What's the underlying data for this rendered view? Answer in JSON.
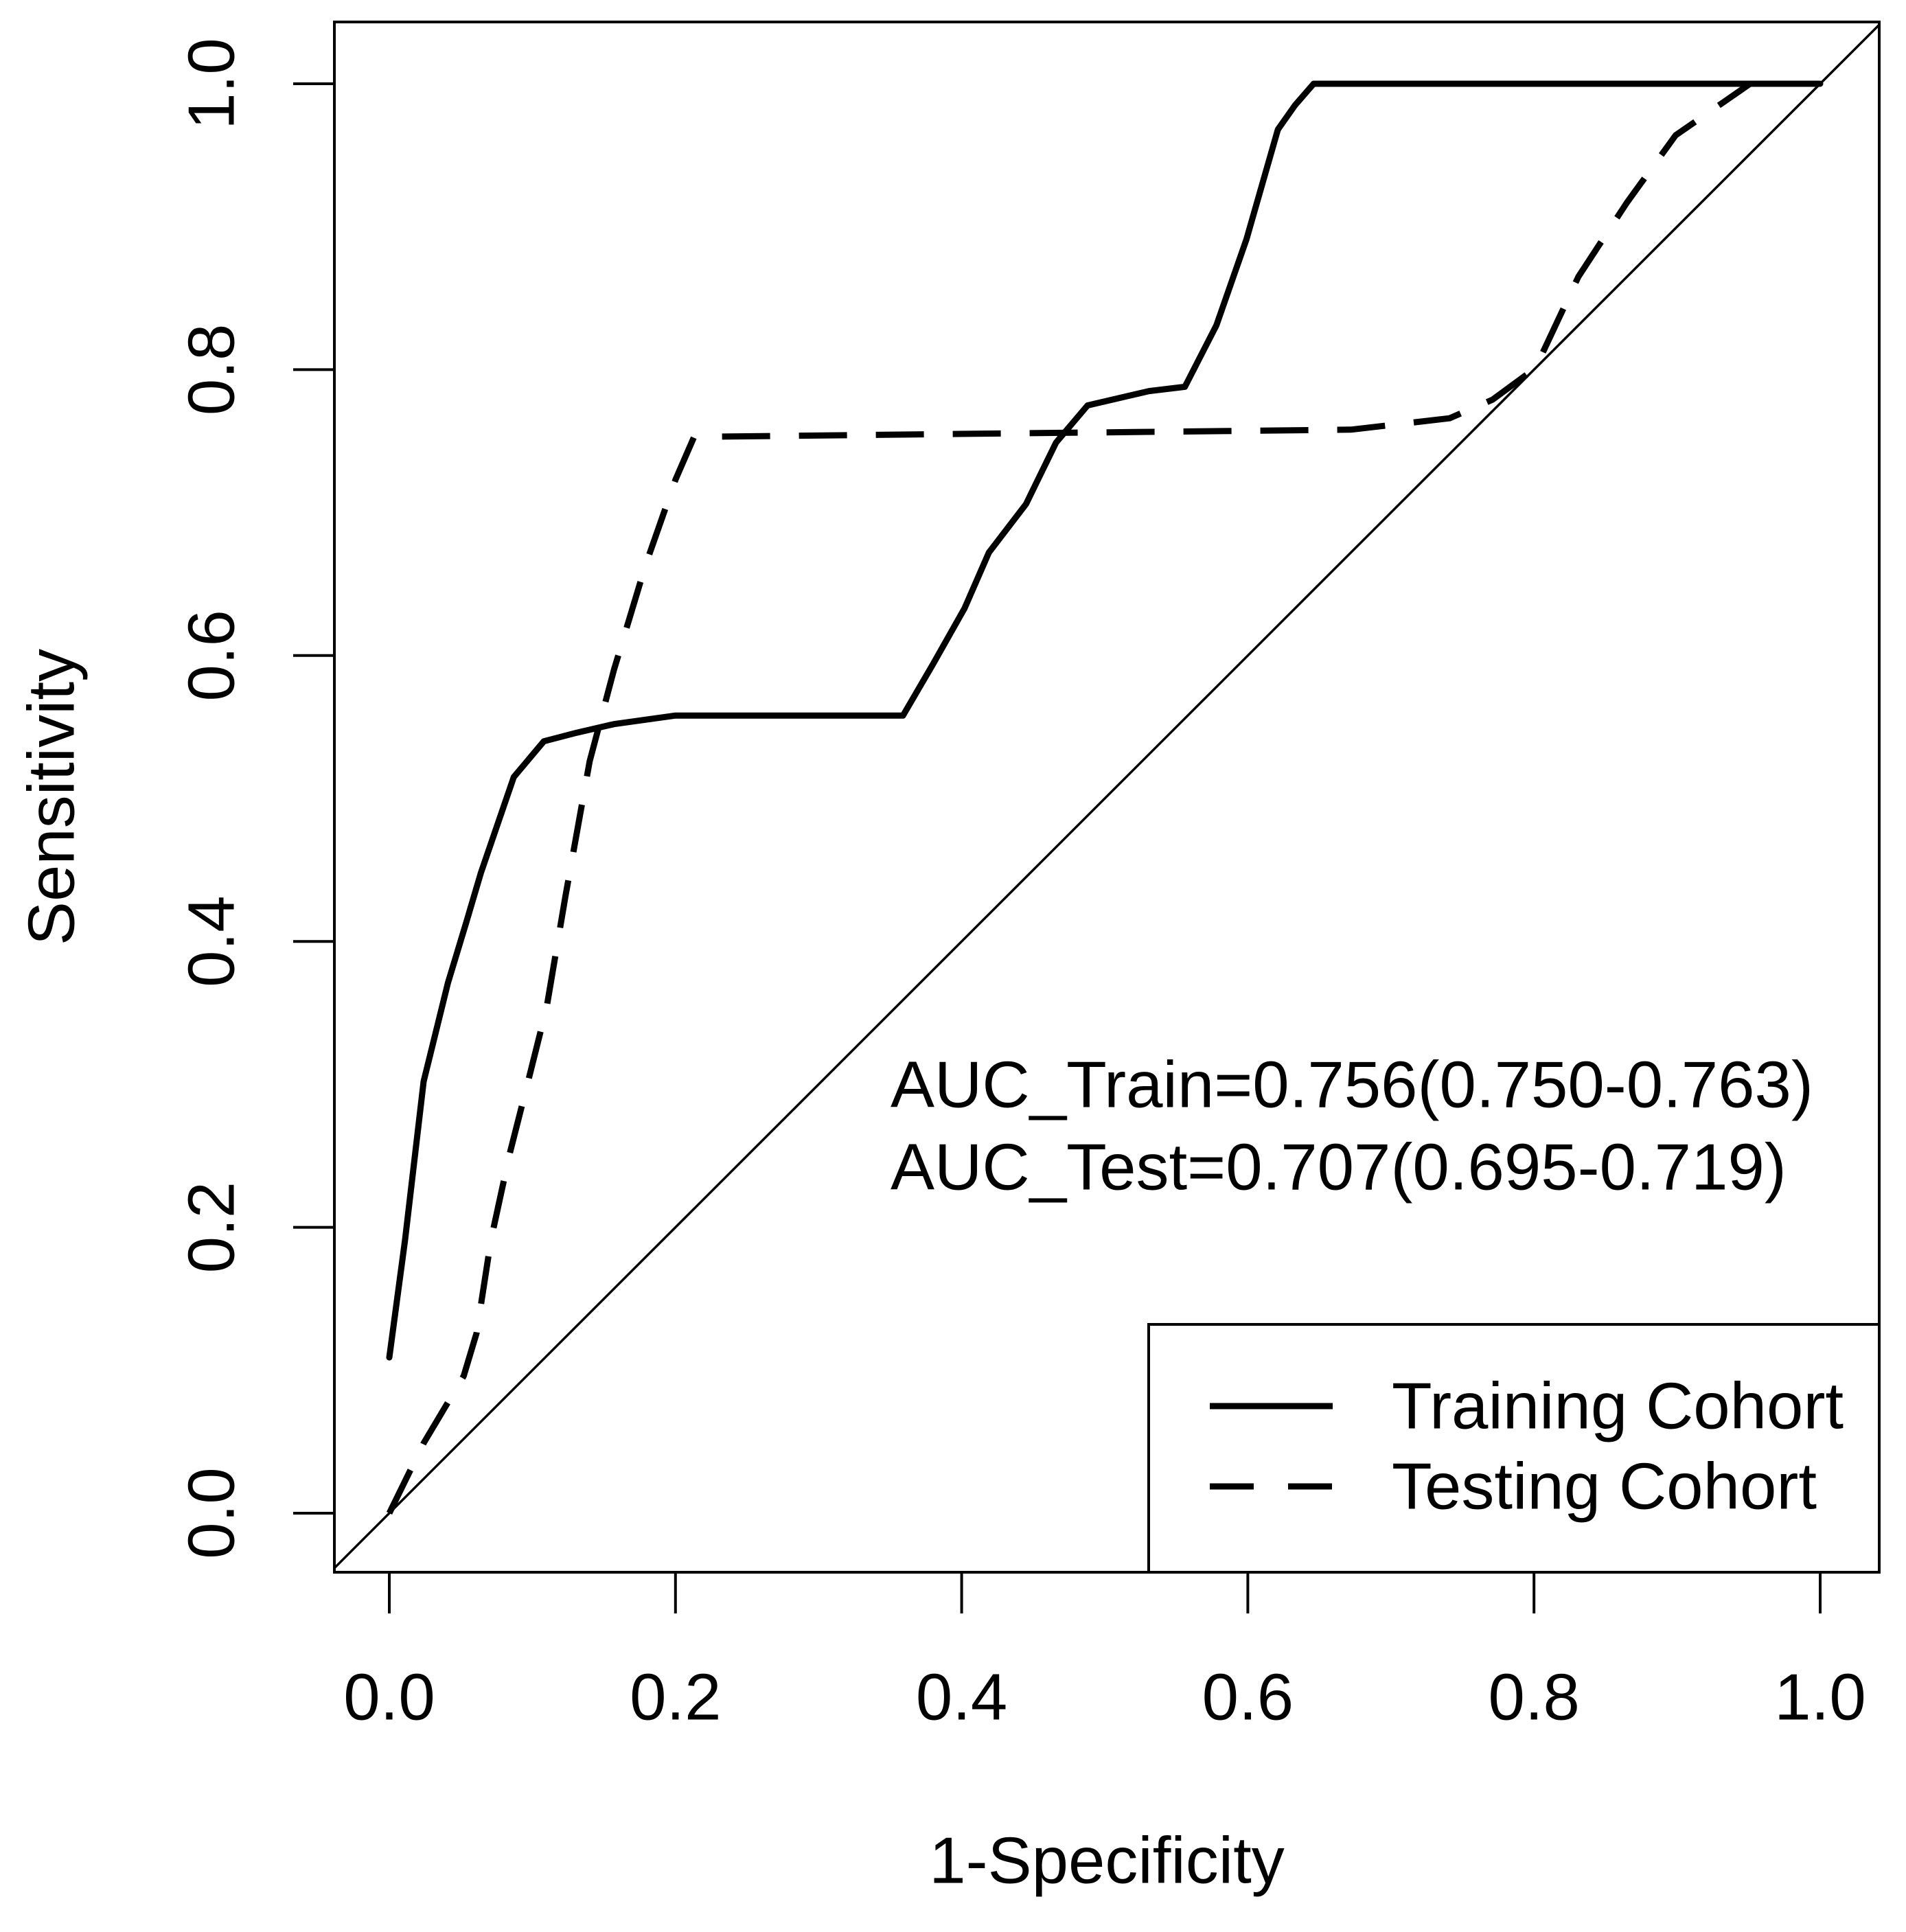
{
  "colors": {
    "foreground": "#000000",
    "background": "#ffffff"
  },
  "chart_data": {
    "type": "line",
    "xlabel": "1-Specificity",
    "ylabel": "Sensitivity",
    "xlim": [
      0,
      1
    ],
    "ylim": [
      0,
      1
    ],
    "xticks": [
      "0.0",
      "0.2",
      "0.4",
      "0.6",
      "0.8",
      "1.0"
    ],
    "yticks": [
      "0.0",
      "0.2",
      "0.4",
      "0.6",
      "0.8",
      "1.0"
    ],
    "grid": false,
    "series": [
      {
        "name": "Training Cohort",
        "x": [
          0,
          0.011,
          0.024,
          0.041,
          0.054,
          0.064,
          0.087,
          0.108,
          0.131,
          0.157,
          0.2,
          0.359,
          0.38,
          0.402,
          0.419,
          0.445,
          0.466,
          0.488,
          0.531,
          0.556,
          0.578,
          0.599,
          0.621,
          0.633,
          0.646,
          1.0
        ],
        "y": [
          0.109,
          0.191,
          0.302,
          0.371,
          0.414,
          0.448,
          0.515,
          0.54,
          0.546,
          0.552,
          0.558,
          0.558,
          0.594,
          0.633,
          0.672,
          0.706,
          0.749,
          0.775,
          0.785,
          0.788,
          0.831,
          0.891,
          0.968,
          0.985,
          1.0,
          1.0
        ]
      },
      {
        "name": "Testing Cohort",
        "x": [
          0,
          0.024,
          0.052,
          0.061,
          0.071,
          0.084,
          0.097,
          0.11,
          0.123,
          0.14,
          0.157,
          0.179,
          0.2,
          0.213,
          0.672,
          0.741,
          0.771,
          0.801,
          0.831,
          0.865,
          0.899,
          0.951,
          1.0
        ],
        "y": [
          0,
          0.049,
          0.096,
          0.126,
          0.191,
          0.251,
          0.302,
          0.354,
          0.431,
          0.526,
          0.59,
          0.663,
          0.723,
          0.753,
          0.758,
          0.766,
          0.779,
          0.801,
          0.865,
          0.917,
          0.964,
          1.0,
          1.0
        ]
      }
    ],
    "reference_line": {
      "x": [
        0,
        1
      ],
      "y": [
        0,
        1
      ]
    },
    "annotations": [
      "AUC_Train=0.756(0.750-0.763)",
      "AUC_Test=0.707(0.695-0.719)"
    ],
    "legend": {
      "position": "bottom-right"
    }
  }
}
